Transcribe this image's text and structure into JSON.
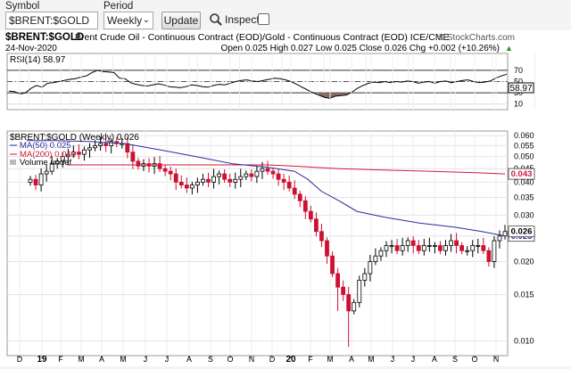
{
  "form": {
    "symbol_label": "Symbol",
    "symbol_value": "$BRENT:$GOLD",
    "period_label": "Period",
    "period_value": "Weekly",
    "update_label": "Update",
    "inspect_label": "Inspect"
  },
  "header": {
    "title_symbol": "$BRENT:$GOLD",
    "title_desc": "Brent Crude Oil - Continuous Contract (EOD)/Gold - Continuous Contract (EOD) ICE/CME",
    "watermark": "© StockCharts.com",
    "date": "24-Nov-2020",
    "ohlc": "Open 0.025  High 0.027  Low 0.025  Close 0.026  Chg +0.002 (+10.26%)",
    "ohlc_up_arrow": "▲"
  },
  "rsi": {
    "label": "RSI(14) 58.97",
    "value_tag": "58.97",
    "value": 58.97,
    "levels": [
      70,
      30
    ],
    "ticks": [
      "70",
      "50",
      "30",
      "10"
    ]
  },
  "price": {
    "legend_title": "$BRENT:$GOLD (Weekly) 0.026",
    "ma50_label": "MA(50) 0.025",
    "ma200_label": "MA(200) 0.043",
    "volume_label": "Volume undef",
    "price_tag": "0.026",
    "ma50_tag": "0.025",
    "ma200_tag": "0.043",
    "close": 0.026,
    "ma50": 0.025,
    "ma200": 0.043,
    "ticks": [
      "0.060",
      "0.055",
      "0.050",
      "0.045",
      "0.040",
      "0.035",
      "0.030",
      "0.025",
      "0.020",
      "0.015",
      "0.010"
    ],
    "tick_values": [
      0.06,
      0.055,
      0.05,
      0.045,
      0.04,
      0.035,
      0.03,
      0.025,
      0.02,
      0.015,
      0.01
    ]
  },
  "xaxis": {
    "labels": [
      "D",
      "19",
      "F",
      "M",
      "A",
      "M",
      "J",
      "J",
      "A",
      "S",
      "O",
      "N",
      "D",
      "20",
      "F",
      "M",
      "A",
      "M",
      "J",
      "J",
      "A",
      "S",
      "O",
      "N"
    ]
  },
  "colors": {
    "up": "#000000",
    "down": "#cc1133",
    "ma50": "#2b2b9b",
    "ma200": "#d01a3a",
    "rsi_fill": "#8a6a66"
  }
}
